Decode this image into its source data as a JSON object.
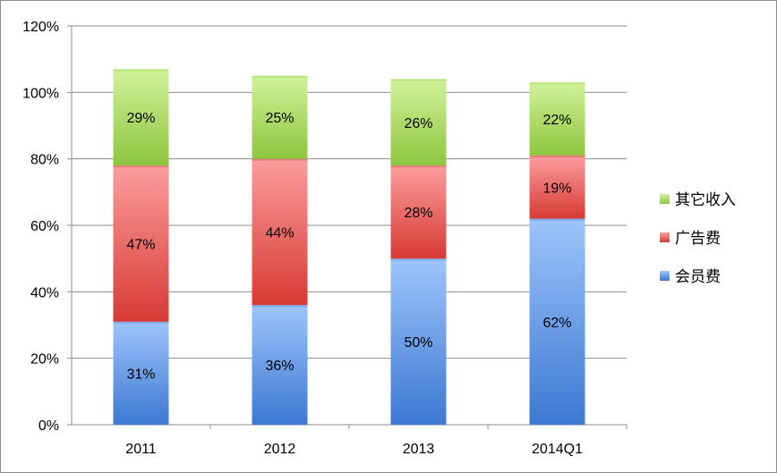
{
  "chart_data": {
    "type": "bar",
    "stacked": true,
    "categories": [
      "2011",
      "2012",
      "2013",
      "2014Q1"
    ],
    "series": [
      {
        "name": "会员费",
        "values": [
          31,
          36,
          50,
          62
        ],
        "labels": [
          "31%",
          "36%",
          "50%",
          "62%"
        ],
        "color_top": "#9ec5fb",
        "color_bottom": "#3d78d2"
      },
      {
        "name": "广告费",
        "values": [
          47,
          44,
          28,
          19
        ],
        "labels": [
          "47%",
          "44%",
          "28%",
          "19%"
        ],
        "color_top": "#fc9e9e",
        "color_bottom": "#d73a33"
      },
      {
        "name": "其它收入",
        "values": [
          29,
          25,
          26,
          22
        ],
        "labels": [
          "29%",
          "25%",
          "26%",
          "22%"
        ],
        "color_top": "#d0f29a",
        "color_bottom": "#8ec63f"
      }
    ],
    "ylim": [
      0,
      120
    ],
    "yticks": [
      0,
      20,
      40,
      60,
      80,
      100,
      120
    ],
    "ytick_labels": [
      "0%",
      "20%",
      "40%",
      "60%",
      "80%",
      "100%",
      "120%"
    ],
    "grid": true,
    "legend": {
      "placement": "right",
      "order": [
        "其它收入",
        "广告费",
        "会员费"
      ]
    },
    "title": "",
    "xlabel": "",
    "ylabel": ""
  }
}
